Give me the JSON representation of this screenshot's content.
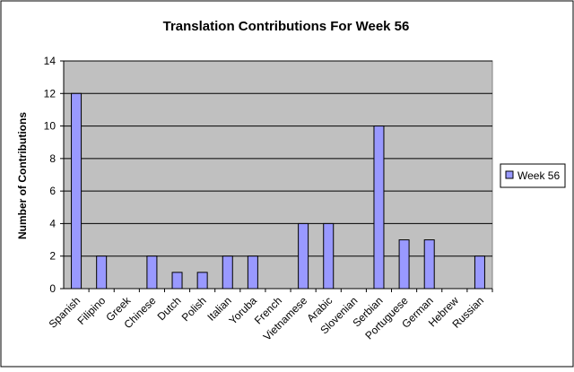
{
  "chart_data": {
    "type": "bar",
    "title": "Translation Contributions For Week 56",
    "xlabel": "",
    "ylabel": "Number of Contributions",
    "ylim": [
      0,
      14
    ],
    "yticks": [
      0,
      2,
      4,
      6,
      8,
      10,
      12,
      14
    ],
    "grid": true,
    "legend_position": "right",
    "categories": [
      "Spanish",
      "Filipino",
      "Greek",
      "Chinese",
      "Dutch",
      "Polish",
      "Italian",
      "Yoruba",
      "French",
      "Vietnamese",
      "Arabic",
      "Slovenian",
      "Serbian",
      "Portuguese",
      "German",
      "Hebrew",
      "Russian"
    ],
    "series": [
      {
        "name": "Week 56",
        "values": [
          12,
          2,
          0,
          2,
          1,
          1,
          2,
          2,
          0,
          4,
          4,
          0,
          10,
          3,
          3,
          0,
          2
        ]
      }
    ],
    "colors": {
      "bar_fill": "#9999ff",
      "bar_stroke": "#000000",
      "plot_background": "#c0c0c0",
      "gridline": "#000000"
    }
  }
}
